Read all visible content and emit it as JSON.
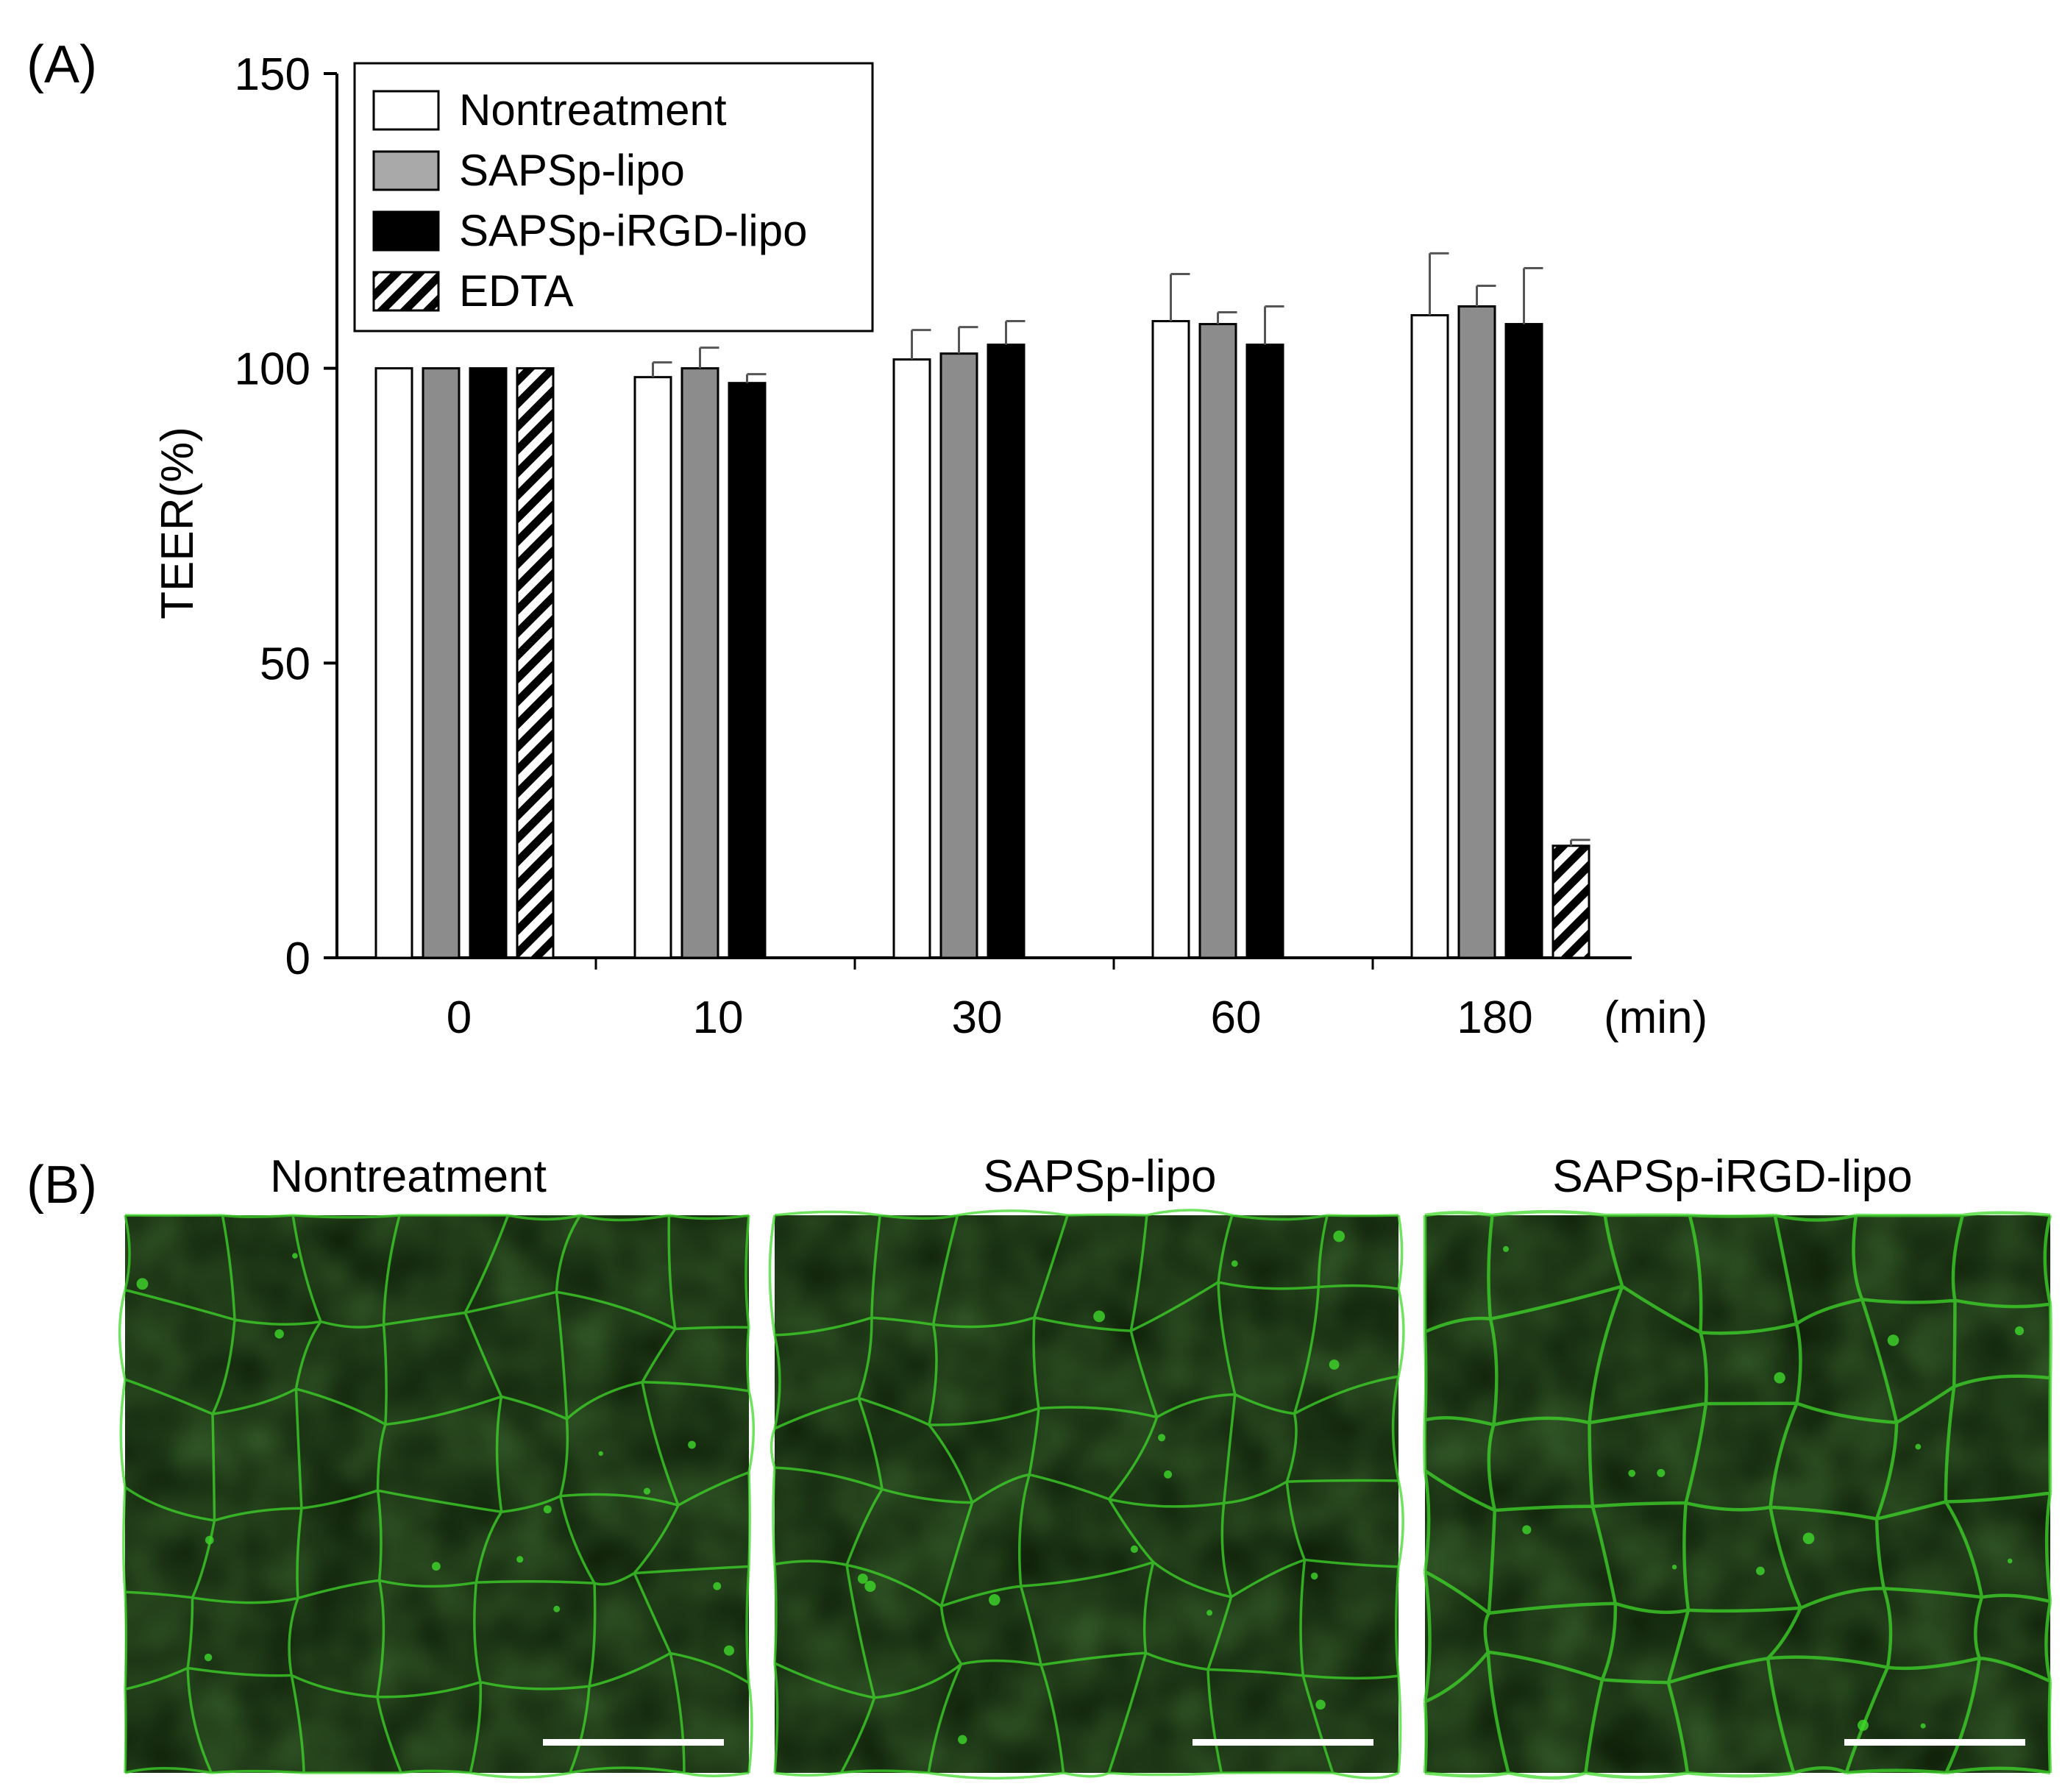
{
  "panel_a_label": "(A)",
  "panel_b_label": "(B)",
  "chart_data": {
    "type": "bar",
    "categories": [
      "0",
      "10",
      "30",
      "60",
      "180"
    ],
    "x_unit": "(min)",
    "ylabel": "TEER(%)",
    "ylim": [
      0,
      150
    ],
    "yticks": [
      0,
      50,
      100,
      150
    ],
    "legend_position": "top-left",
    "series": [
      {
        "name": "Nontreatment",
        "fill": "white",
        "values": [
          100,
          98.5,
          101.5,
          108,
          109
        ],
        "errors": [
          0,
          2.5,
          5,
          8,
          10.5
        ]
      },
      {
        "name": "SAPSp-lipo",
        "fill": "gray",
        "values": [
          100,
          100,
          102.5,
          107.5,
          110.5
        ],
        "errors": [
          0,
          3.5,
          4.5,
          2,
          3.5
        ]
      },
      {
        "name": "SAPSp-iRGD-lipo",
        "fill": "black",
        "values": [
          100,
          97.5,
          104,
          104,
          107.5
        ],
        "errors": [
          0,
          1.5,
          4,
          6.5,
          9.5
        ]
      },
      {
        "name": "EDTA",
        "fill": "hatched",
        "values": [
          100,
          null,
          null,
          null,
          19
        ],
        "errors": [
          0,
          null,
          null,
          null,
          1
        ]
      }
    ]
  },
  "micrographs": [
    {
      "title": "Nontreatment"
    },
    {
      "title": "SAPSp-lipo"
    },
    {
      "title": "SAPSp-iRGD-lipo"
    }
  ],
  "colors": {
    "white_fill": "#ffffff",
    "gray_fill": "#8c8c8c",
    "legend_gray_fill": "#a9a9a9",
    "black_fill": "#000000",
    "error_bar": "#555555",
    "micrograph_background": "#0b1a06",
    "membrane_green": "#3fd82a"
  }
}
